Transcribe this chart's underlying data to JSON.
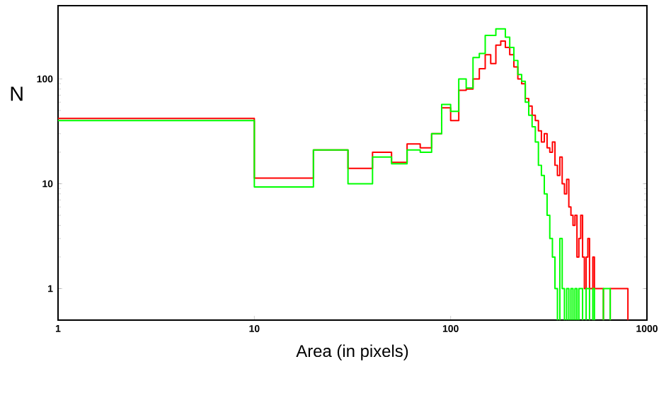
{
  "chart_data": {
    "type": "histogram",
    "xlabel": "Area (in pixels)",
    "ylabel": "N",
    "log": "xy",
    "bins": [
      1,
      10,
      20,
      30,
      40,
      50,
      60,
      70,
      80,
      90,
      100,
      110,
      120,
      130,
      140,
      150,
      160,
      170,
      180,
      190,
      200,
      210,
      220,
      230,
      240,
      250,
      260,
      270,
      280,
      290,
      300,
      310,
      320,
      330,
      340,
      350,
      360,
      370,
      380,
      390,
      400,
      410,
      420,
      430,
      440,
      450,
      460,
      470,
      480,
      490,
      500,
      510,
      520,
      530,
      540,
      550,
      600,
      650,
      700,
      800
    ],
    "series": [
      {
        "color": "#ff0000",
        "values": [
          42,
          11.3,
          21,
          14,
          20,
          16,
          24,
          22,
          30,
          53,
          40,
          78,
          80,
          100,
          125,
          170,
          140,
          210,
          230,
          200,
          170,
          130,
          100,
          90,
          65,
          55,
          45,
          40,
          32,
          25,
          30,
          22,
          20,
          25,
          15,
          12,
          18,
          10,
          8,
          11,
          6,
          5,
          4,
          5,
          2,
          3,
          5,
          2,
          1,
          2,
          3,
          1,
          1,
          2,
          1,
          1,
          null,
          1,
          1
        ]
      },
      {
        "color": "#00ff00",
        "bins": [
          1,
          10,
          20,
          30,
          40,
          50,
          60,
          70,
          80,
          90,
          100,
          110,
          120,
          130,
          140,
          150,
          160,
          170,
          180,
          190,
          200,
          210,
          220,
          230,
          240,
          250,
          260,
          270,
          280,
          290,
          300,
          310,
          320,
          330,
          340,
          350,
          360,
          370,
          380,
          390,
          400,
          410,
          420,
          430,
          440,
          450,
          460,
          470,
          480,
          490,
          500,
          510,
          520,
          530,
          540,
          550,
          600,
          650
        ],
        "values": [
          40,
          9.3,
          21,
          10,
          18,
          15.5,
          21,
          20,
          30,
          57,
          49,
          100,
          82,
          160,
          175,
          260,
          260,
          300,
          300,
          250,
          200,
          150,
          110,
          95,
          60,
          45,
          35,
          25,
          15,
          12,
          8,
          5,
          3,
          2,
          1,
          null,
          3,
          1,
          null,
          1,
          null,
          1,
          null,
          1,
          null,
          1,
          1,
          null,
          null,
          1,
          1,
          null,
          null,
          1,
          null,
          null,
          1
        ]
      }
    ],
    "xlim": [
      1,
      1000
    ],
    "ylim": [
      0.5,
      500
    ],
    "xticks": [
      1,
      10,
      100,
      1000
    ],
    "yticks": [
      1,
      10,
      100
    ]
  }
}
